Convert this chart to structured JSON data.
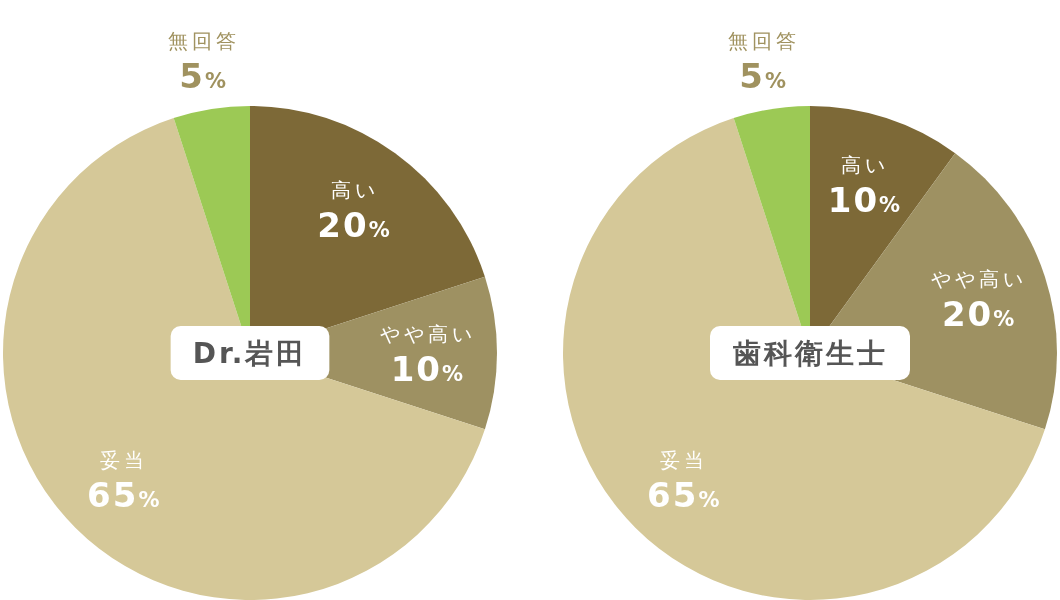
{
  "chart_data": [
    {
      "type": "pie",
      "title": "Dr.岩田",
      "categories": [
        "高い",
        "やや高い",
        "妥当",
        "無回答"
      ],
      "values": [
        20,
        10,
        65,
        5
      ],
      "colors": [
        "#7d6937",
        "#9e9162",
        "#d5c898",
        "#9cc955"
      ],
      "value_labels": [
        "20%",
        "10%",
        "65%",
        "5%"
      ]
    },
    {
      "type": "pie",
      "title": "歯科衛生士",
      "categories": [
        "高い",
        "やや高い",
        "妥当",
        "無回答"
      ],
      "values": [
        10,
        20,
        65,
        5
      ],
      "colors": [
        "#7d6937",
        "#9e9162",
        "#d5c898",
        "#9cc955"
      ],
      "value_labels": [
        "10%",
        "20%",
        "65%",
        "5%"
      ]
    }
  ]
}
